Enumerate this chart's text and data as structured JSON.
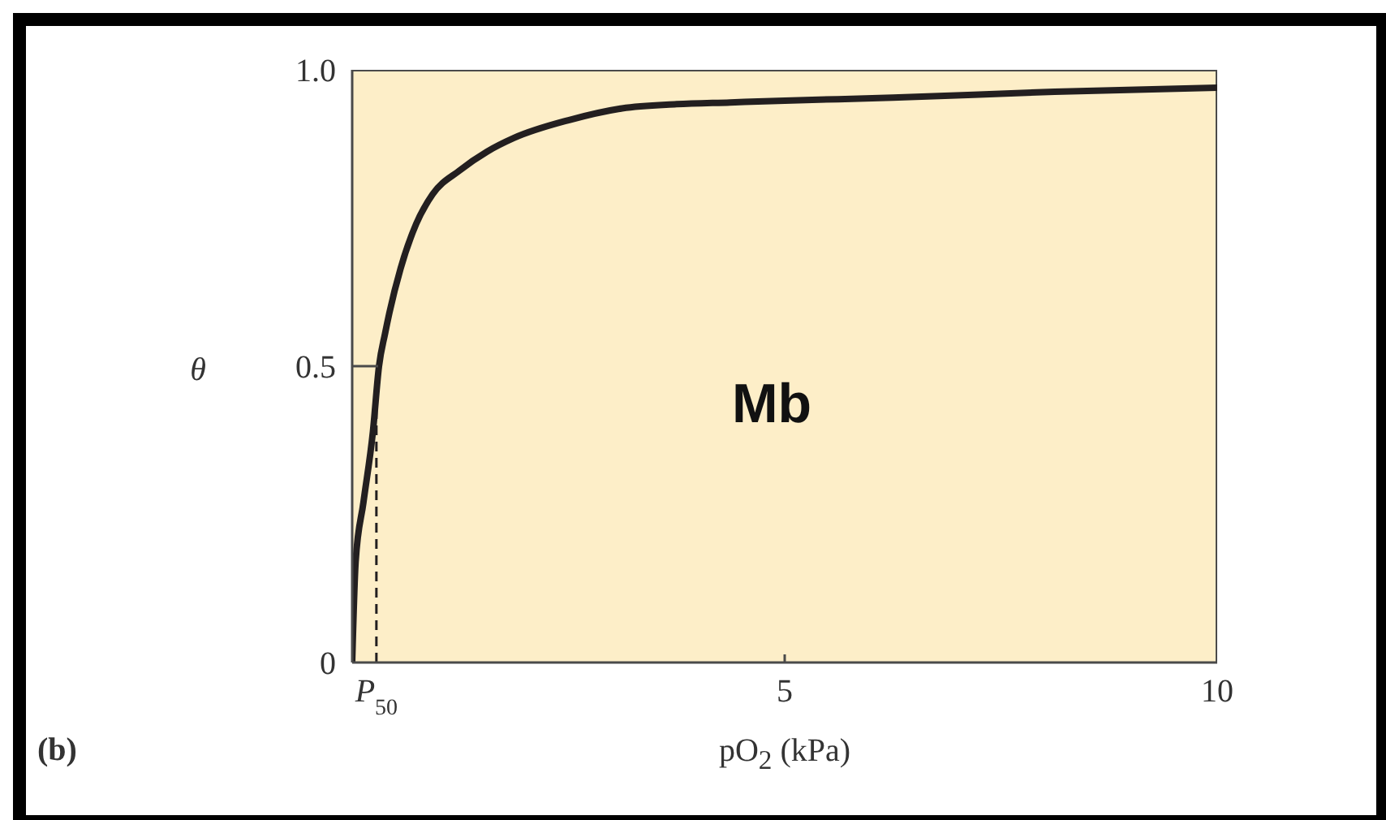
{
  "chart_data": {
    "type": "line",
    "xlabel": "pO$_{2}$ (kPa)",
    "ylabel": "θ",
    "annotations": [
      "Mb",
      "(b)"
    ],
    "x": [
      0,
      0.04,
      0.13,
      0.24,
      0.31,
      0.38,
      0.43,
      0.56,
      0.74,
      0.93,
      1.24,
      1.56,
      1.87,
      2.5,
      3.12,
      3.75,
      4.37,
      5,
      6.25,
      8.12,
      10
    ],
    "series": [
      {
        "color": "#231f20",
        "values": [
          0,
          0.17,
          0.27,
          0.39,
          0.5,
          0.555,
          0.59,
          0.665,
          0.74,
          0.79,
          0.83,
          0.862,
          0.885,
          0.915,
          0.935,
          0.942,
          0.945,
          0.948,
          0.953,
          0.963,
          0.97
        ]
      }
    ],
    "xlim": [
      0,
      10
    ],
    "xticks": [
      5,
      10
    ],
    "ylim": [
      0,
      1
    ],
    "yticks": [
      0,
      0.5,
      {
        "value": 1,
        "label": "1.0"
      }
    ],
    "ref_lines": [
      {
        "axis": "x",
        "value": 0.28,
        "label": "P$_{50}$",
        "line_style": "dashed",
        "color": "#231f20"
      }
    ]
  }
}
